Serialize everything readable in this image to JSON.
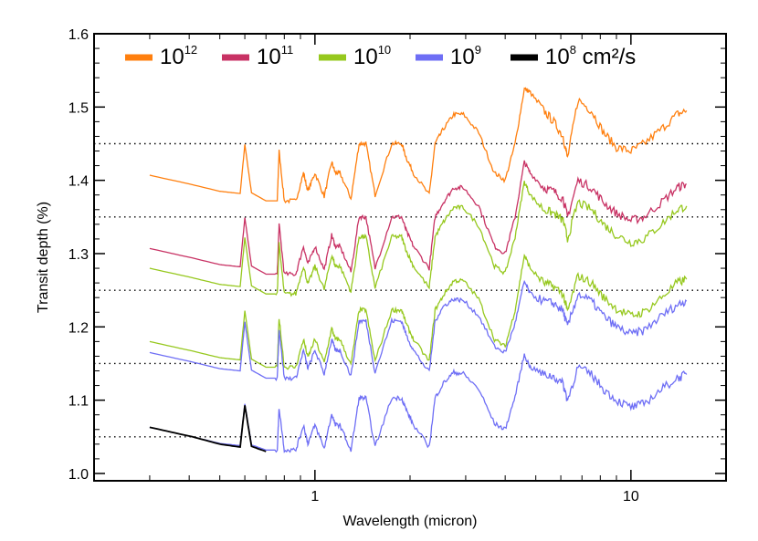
{
  "chart_data": {
    "type": "line",
    "xlabel": "Wavelength (micron)",
    "ylabel": "Transit depth (%)",
    "x_scale": "log",
    "xlim": [
      0.2,
      20
    ],
    "ylim": [
      0.99,
      1.6
    ],
    "x_ticks": [
      {
        "value": 1,
        "label": "1"
      },
      {
        "value": 10,
        "label": "10"
      }
    ],
    "y_ticks": [
      {
        "value": 1.0,
        "label": "1.0"
      },
      {
        "value": 1.1,
        "label": "1.1"
      },
      {
        "value": 1.2,
        "label": "1.2"
      },
      {
        "value": 1.3,
        "label": "1.3"
      },
      {
        "value": 1.4,
        "label": "1.4"
      },
      {
        "value": 1.5,
        "label": "1.5"
      },
      {
        "value": 1.6,
        "label": "1.6"
      }
    ],
    "reference_lines": [
      1.05,
      1.15,
      1.25,
      1.35,
      1.45
    ],
    "grid": false,
    "legend_position": "top",
    "legend": [
      {
        "base": "10",
        "exp": "12",
        "unit": "",
        "color": "#FF7F0E"
      },
      {
        "base": "10",
        "exp": "11",
        "unit": "",
        "color": "#C83264"
      },
      {
        "base": "10",
        "exp": "10",
        "unit": "",
        "color": "#96C81E"
      },
      {
        "base": "10",
        "exp": "9",
        "unit": "",
        "color": "#6E6EF5"
      },
      {
        "base": "10",
        "exp": "8",
        "unit": " cm²/s",
        "color": "#000000"
      }
    ],
    "series": [
      {
        "name": "10^12",
        "color": "#FF7F0E",
        "x": [
          0.3,
          0.41,
          0.5,
          0.58,
          0.6,
          0.63,
          0.7,
          0.76,
          0.77,
          0.8,
          0.87,
          0.92,
          0.95,
          1.0,
          1.07,
          1.13,
          1.16,
          1.2,
          1.3,
          1.38,
          1.45,
          1.55,
          1.75,
          1.88,
          1.95,
          2.05,
          2.3,
          2.4,
          2.55,
          2.75,
          2.95,
          3.3,
          3.7,
          4.0,
          4.3,
          4.6,
          4.8,
          5.3,
          5.7,
          6.1,
          6.3,
          6.8,
          7.5,
          8.2,
          9.0,
          10.0,
          11.0,
          12.5,
          14.0,
          15.0
        ],
        "y": [
          1.407,
          1.394,
          1.385,
          1.382,
          1.449,
          1.383,
          1.372,
          1.372,
          1.44,
          1.372,
          1.372,
          1.41,
          1.385,
          1.41,
          1.378,
          1.425,
          1.41,
          1.41,
          1.375,
          1.45,
          1.45,
          1.38,
          1.45,
          1.45,
          1.43,
          1.41,
          1.38,
          1.45,
          1.47,
          1.49,
          1.49,
          1.465,
          1.41,
          1.4,
          1.45,
          1.525,
          1.52,
          1.495,
          1.48,
          1.46,
          1.43,
          1.51,
          1.495,
          1.465,
          1.445,
          1.44,
          1.45,
          1.47,
          1.49,
          1.495
        ]
      },
      {
        "name": "10^11",
        "color": "#C83264",
        "x": [
          0.3,
          0.41,
          0.5,
          0.58,
          0.6,
          0.63,
          0.7,
          0.76,
          0.77,
          0.8,
          0.87,
          0.92,
          0.95,
          1.0,
          1.07,
          1.13,
          1.16,
          1.2,
          1.3,
          1.38,
          1.45,
          1.55,
          1.75,
          1.88,
          1.95,
          2.05,
          2.3,
          2.4,
          2.55,
          2.75,
          2.95,
          3.3,
          3.7,
          4.0,
          4.3,
          4.6,
          4.8,
          5.3,
          5.7,
          6.1,
          6.3,
          6.8,
          7.5,
          8.2,
          9.0,
          10.0,
          11.0,
          12.5,
          14.0,
          15.0
        ],
        "y": [
          1.307,
          1.294,
          1.285,
          1.282,
          1.349,
          1.283,
          1.272,
          1.272,
          1.34,
          1.272,
          1.272,
          1.31,
          1.285,
          1.31,
          1.278,
          1.325,
          1.31,
          1.31,
          1.275,
          1.35,
          1.35,
          1.28,
          1.35,
          1.35,
          1.33,
          1.31,
          1.28,
          1.35,
          1.37,
          1.39,
          1.39,
          1.365,
          1.31,
          1.3,
          1.35,
          1.425,
          1.41,
          1.39,
          1.385,
          1.375,
          1.35,
          1.4,
          1.39,
          1.37,
          1.355,
          1.345,
          1.35,
          1.37,
          1.39,
          1.395
        ]
      },
      {
        "name": "10^10",
        "color": "#96C81E",
        "x": [
          0.3,
          0.41,
          0.5,
          0.58,
          0.6,
          0.63,
          0.7,
          0.76,
          0.77,
          0.8,
          0.87,
          0.92,
          0.95,
          1.0,
          1.07,
          1.13,
          1.16,
          1.2,
          1.3,
          1.38,
          1.45,
          1.55,
          1.75,
          1.88,
          1.95,
          2.05,
          2.3,
          2.4,
          2.55,
          2.75,
          2.95,
          3.3,
          3.7,
          4.0,
          4.3,
          4.6,
          4.8,
          5.3,
          5.7,
          6.1,
          6.3,
          6.8,
          7.5,
          8.2,
          9.0,
          10.0,
          11.0,
          12.5,
          14.0,
          15.0,
          15.01,
          14.0,
          12.5,
          11.0,
          10.0,
          9.0,
          8.2,
          7.5,
          6.8,
          6.3,
          6.1,
          5.7,
          5.3,
          4.8,
          4.6,
          4.3,
          4.0,
          3.7,
          3.3,
          2.95,
          2.75,
          2.55,
          2.4,
          2.3,
          2.05,
          1.95,
          1.88,
          1.75,
          1.55,
          1.45,
          1.38,
          1.3,
          1.2,
          1.16,
          1.13,
          1.07,
          1.0,
          0.95,
          0.92,
          0.87,
          0.8,
          0.77,
          0.76,
          0.7,
          0.63,
          0.6,
          0.58,
          0.5,
          0.41,
          0.3
        ],
        "y": [
          1.28,
          1.267,
          1.258,
          1.255,
          1.322,
          1.256,
          1.245,
          1.245,
          1.313,
          1.245,
          1.245,
          1.283,
          1.258,
          1.283,
          1.251,
          1.298,
          1.283,
          1.283,
          1.248,
          1.323,
          1.323,
          1.253,
          1.323,
          1.323,
          1.303,
          1.283,
          1.253,
          1.323,
          1.343,
          1.363,
          1.363,
          1.338,
          1.283,
          1.273,
          1.323,
          1.398,
          1.38,
          1.36,
          1.355,
          1.345,
          1.32,
          1.37,
          1.36,
          1.34,
          1.325,
          1.315,
          1.32,
          1.34,
          1.36,
          1.365,
          null,
          null,
          null,
          null,
          null,
          null,
          null,
          null,
          null,
          null,
          null,
          null,
          null,
          null,
          null,
          null,
          null,
          null,
          null,
          null,
          null,
          null,
          null,
          null,
          null,
          null,
          null,
          null,
          null,
          null,
          null,
          null,
          null,
          null,
          null,
          null,
          null,
          null,
          null,
          null,
          null,
          null,
          null,
          null,
          null,
          null,
          null,
          null,
          null,
          null
        ]
      },
      {
        "name": "10^10 (low)",
        "color": "#96C81E",
        "x": [
          0.3,
          0.41,
          0.5,
          0.58,
          0.6,
          0.63,
          0.7,
          0.76,
          0.77,
          0.8,
          0.87,
          0.92,
          0.95,
          1.0,
          1.07,
          1.13,
          1.16,
          1.2,
          1.3,
          1.38,
          1.45,
          1.55,
          1.75,
          1.88,
          1.95,
          2.05,
          2.3,
          2.4,
          2.55,
          2.75,
          2.95,
          3.3,
          3.7,
          4.0,
          4.3,
          4.6,
          4.8,
          5.3,
          5.7,
          6.1,
          6.3,
          6.8,
          7.5,
          8.2,
          9.0,
          10.0,
          11.0,
          12.5,
          14.0,
          15.0
        ],
        "y": [
          1.18,
          1.167,
          1.158,
          1.155,
          1.222,
          1.156,
          1.145,
          1.145,
          1.213,
          1.145,
          1.145,
          1.183,
          1.158,
          1.183,
          1.151,
          1.198,
          1.183,
          1.183,
          1.148,
          1.223,
          1.223,
          1.153,
          1.223,
          1.223,
          1.203,
          1.183,
          1.153,
          1.223,
          1.243,
          1.263,
          1.263,
          1.238,
          1.183,
          1.173,
          1.223,
          1.298,
          1.28,
          1.26,
          1.255,
          1.245,
          1.22,
          1.27,
          1.26,
          1.24,
          1.225,
          1.215,
          1.22,
          1.24,
          1.26,
          1.265
        ]
      },
      {
        "name": "10^9",
        "color": "#6E6EF5",
        "x": [
          0.3,
          0.41,
          0.5,
          0.58,
          0.6,
          0.63,
          0.7,
          0.76,
          0.77,
          0.8,
          0.87,
          0.92,
          0.95,
          1.0,
          1.07,
          1.13,
          1.16,
          1.2,
          1.3,
          1.38,
          1.45,
          1.55,
          1.75,
          1.88,
          1.95,
          2.05,
          2.3,
          2.4,
          2.55,
          2.75,
          2.95,
          3.3,
          3.7,
          4.0,
          4.3,
          4.6,
          4.8,
          5.3,
          5.7,
          6.1,
          6.3,
          6.8,
          7.5,
          8.2,
          9.0,
          10.0,
          11.0,
          12.5,
          14.0,
          15.0
        ],
        "y": [
          1.165,
          1.152,
          1.143,
          1.14,
          1.207,
          1.141,
          1.13,
          1.13,
          1.198,
          1.13,
          1.13,
          1.168,
          1.143,
          1.168,
          1.136,
          1.183,
          1.168,
          1.168,
          1.133,
          1.208,
          1.208,
          1.138,
          1.208,
          1.208,
          1.188,
          1.168,
          1.138,
          1.208,
          1.228,
          1.238,
          1.236,
          1.215,
          1.173,
          1.165,
          1.205,
          1.262,
          1.245,
          1.235,
          1.232,
          1.222,
          1.2,
          1.245,
          1.235,
          1.215,
          1.2,
          1.19,
          1.195,
          1.215,
          1.23,
          1.235
        ]
      },
      {
        "name": "10^9 (low)",
        "color": "#6E6EF5",
        "x": [
          0.3,
          0.41,
          0.5,
          0.58,
          0.6,
          0.63,
          0.7,
          0.76,
          0.77,
          0.8,
          0.87,
          0.92,
          0.95,
          1.0,
          1.07,
          1.13,
          1.16,
          1.2,
          1.3,
          1.38,
          1.45,
          1.55,
          1.75,
          1.88,
          1.95,
          2.05,
          2.3,
          2.4,
          2.55,
          2.75,
          2.95,
          3.3,
          3.7,
          4.0,
          4.3,
          4.6,
          4.8,
          5.3,
          5.7,
          6.1,
          6.3,
          6.8,
          7.5,
          8.2,
          9.0,
          10.0,
          11.0,
          12.5,
          14.0,
          15.0
        ],
        "y": [
          1.063,
          1.05,
          1.041,
          1.038,
          1.095,
          1.039,
          1.032,
          1.032,
          1.09,
          1.032,
          1.032,
          1.066,
          1.041,
          1.066,
          1.034,
          1.081,
          1.066,
          1.066,
          1.031,
          1.103,
          1.103,
          1.036,
          1.103,
          1.103,
          1.086,
          1.066,
          1.036,
          1.103,
          1.123,
          1.138,
          1.136,
          1.115,
          1.068,
          1.06,
          1.105,
          1.162,
          1.145,
          1.135,
          1.132,
          1.122,
          1.1,
          1.145,
          1.135,
          1.115,
          1.1,
          1.09,
          1.095,
          1.115,
          1.13,
          1.135
        ]
      },
      {
        "name": "10^8",
        "color": "#000000",
        "x": [
          0.3,
          0.41,
          0.5,
          0.58,
          0.6,
          0.63,
          0.7
        ],
        "y": [
          1.063,
          1.05,
          1.04,
          1.036,
          1.093,
          1.037,
          1.03
        ]
      }
    ]
  }
}
